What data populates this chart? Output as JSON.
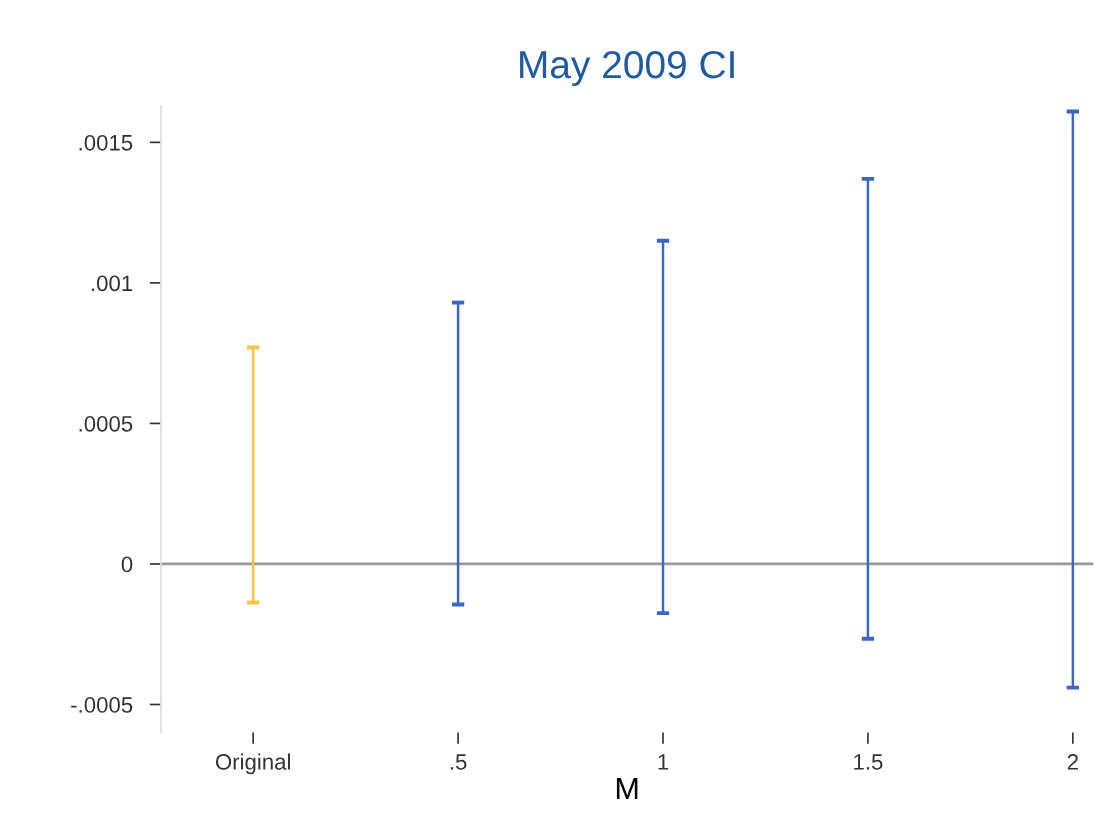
{
  "chart_data": {
    "type": "bar",
    "title": "May 2009 CI",
    "xlabel": "M",
    "categories": [
      "Original",
      ".5",
      "1",
      "1.5",
      "2"
    ],
    "base": [
      -0.000137,
      -0.000144,
      -0.000175,
      -0.000266,
      -0.00044
    ],
    "values": [
      0.000907,
      0.001074,
      0.001325,
      0.001636,
      0.00205
    ],
    "colors": [
      "#f6c343",
      "#3b67c4",
      "#3b67c4",
      "#3b67c4",
      "#3b67c4"
    ],
    "ylim": [
      -0.0006,
      0.00163
    ],
    "yticks": [
      {
        "value": -0.0005,
        "label": "-.0005"
      },
      0,
      {
        "value": 0.0005,
        "label": ".0005"
      },
      {
        "value": 0.001,
        "label": ".001"
      },
      {
        "value": 0.0015,
        "label": ".0015"
      }
    ],
    "ref_lines": [
      {
        "axis": "y",
        "value": 0,
        "color": "#999999"
      }
    ],
    "grid": false,
    "legend": false
  }
}
